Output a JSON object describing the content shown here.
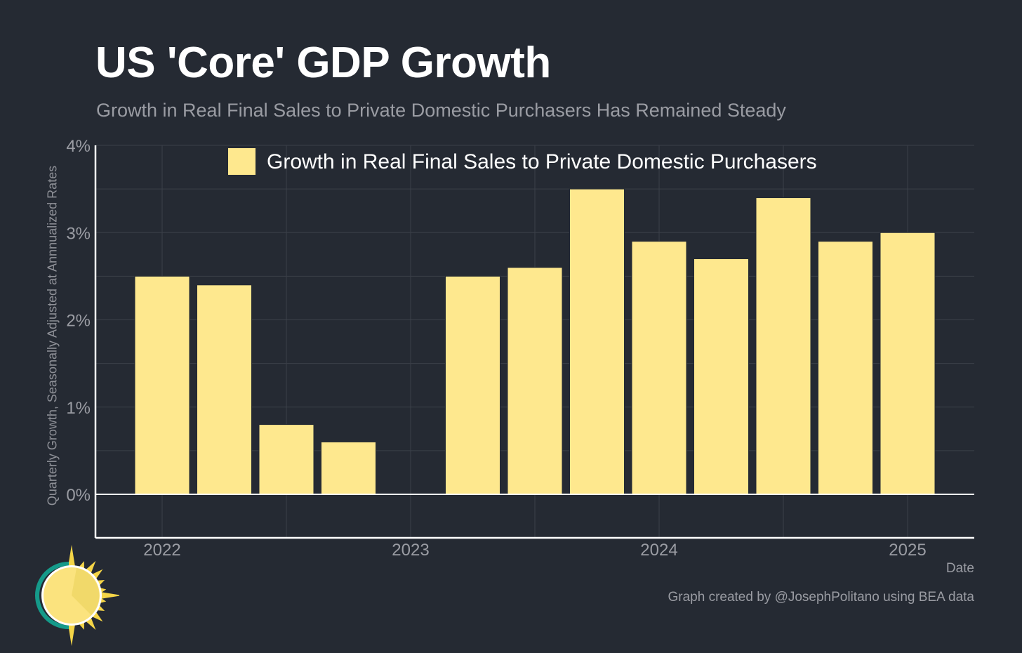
{
  "header": {
    "title": "US 'Core' GDP Growth",
    "subtitle": "Growth in Real Final Sales to Private Domestic Purchasers Has Remained Steady"
  },
  "footer": {
    "credit": "Graph created by @JosephPolitano using BEA data",
    "logo_icon": "sun-logo-icon"
  },
  "colors": {
    "background": "#252a33",
    "bar": "#fee88e",
    "grid": "#3b4049",
    "axis": "#ffffff",
    "tick_text": "#9a9ca3"
  },
  "chart_data": {
    "type": "bar",
    "title": "US 'Core' GDP Growth",
    "subtitle": "Growth in Real Final Sales to Private Domestic Purchasers Has Remained Steady",
    "xlabel": "Date",
    "ylabel": "Quarterly Growth, Seasonally Adjusted at Annnualized Rates",
    "legend": {
      "entries": [
        "Growth in Real Final Sales to Private Domestic Purchasers"
      ],
      "placement": "top-center"
    },
    "grid": true,
    "ylim": [
      -0.5,
      4
    ],
    "yticks": [
      0,
      1,
      2,
      3,
      4
    ],
    "ytick_labels": [
      "0%",
      "1%",
      "2%",
      "3%",
      "4%"
    ],
    "xlim": [
      "2021-10-15",
      "2025-04-15"
    ],
    "xticks": [
      "2022",
      "2023",
      "2024",
      "2025"
    ],
    "categories": [
      "2022 Q1",
      "2022 Q2",
      "2022 Q3",
      "2022 Q4",
      "2023 Q1",
      "2023 Q2",
      "2023 Q3",
      "2023 Q4",
      "2024 Q1",
      "2024 Q2",
      "2024 Q3",
      "2024 Q4",
      "2025 Q1"
    ],
    "series": [
      {
        "name": "Growth in Real Final Sales to Private Domestic Purchasers",
        "values": [
          2.5,
          2.4,
          0.8,
          0.6,
          0.0,
          2.5,
          2.6,
          3.5,
          2.9,
          2.7,
          3.4,
          2.9,
          3.0
        ]
      }
    ]
  }
}
